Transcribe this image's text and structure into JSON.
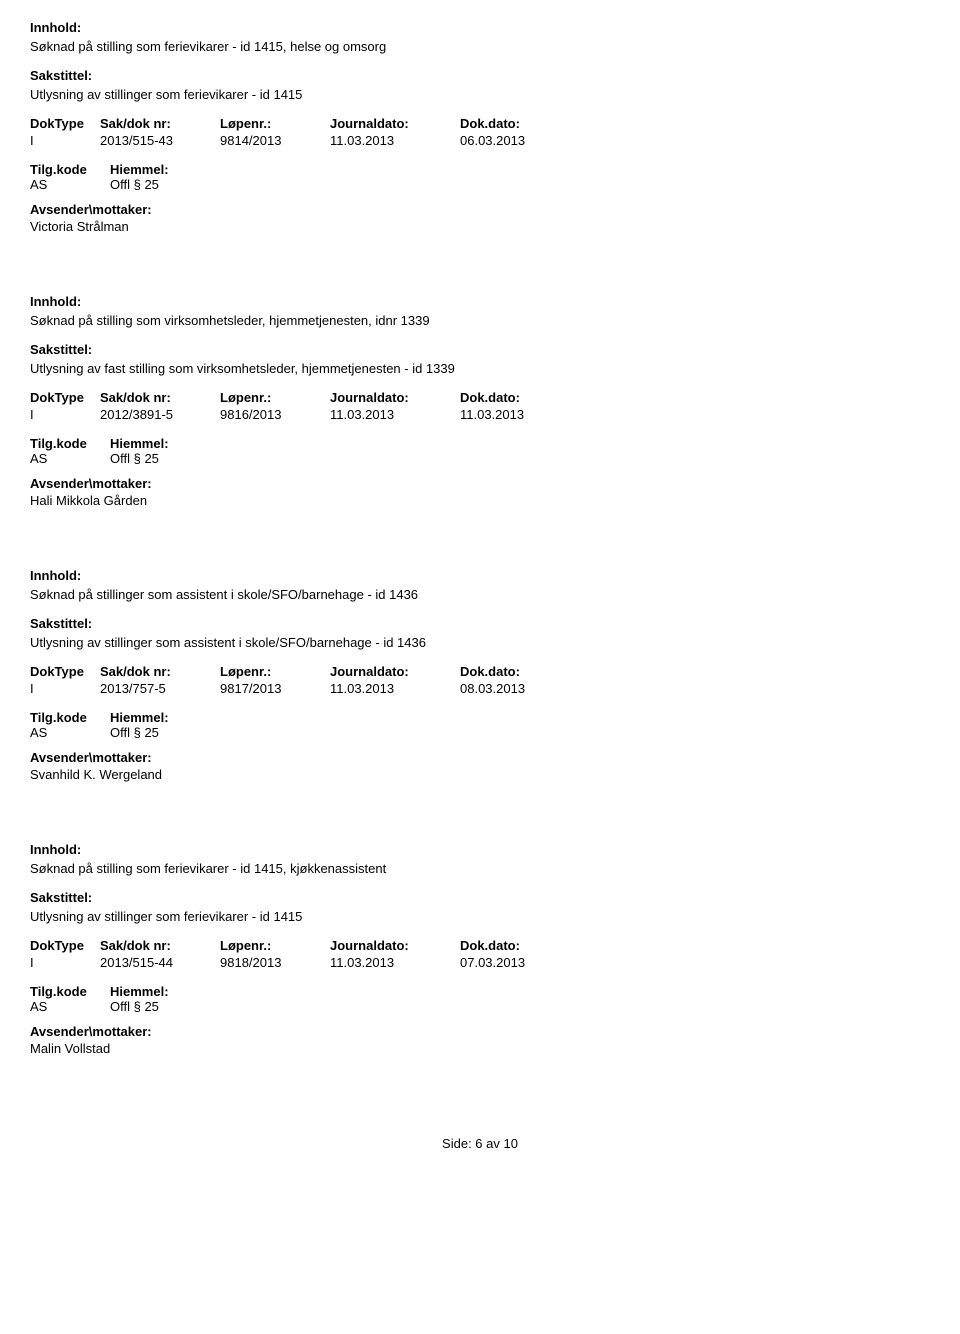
{
  "labels": {
    "innhold": "Innhold:",
    "sakstittel": "Sakstittel:",
    "doktype": "DokType",
    "saknr": "Sak/dok nr:",
    "lopenr": "Løpenr.:",
    "journaldato": "Journaldato:",
    "dokdato": "Dok.dato:",
    "tilgkode": "Tilg.kode",
    "hjemmel": "Hiemmel:",
    "avsender": "Avsender\\mottaker:"
  },
  "records": [
    {
      "innhold": "Søknad på stilling som ferievikarer - id 1415, helse og omsorg",
      "sakstittel": "Utlysning av stillinger som ferievikarer - id 1415",
      "doktype": "I",
      "saknr": "2013/515-43",
      "lopenr": "9814/2013",
      "journaldato": "11.03.2013",
      "dokdato": "06.03.2013",
      "tilgkode": "AS",
      "hjemmel": "Offl § 25",
      "avsender": "Victoria Strålman"
    },
    {
      "innhold": "Søknad på stilling som virksomhetsleder, hjemmetjenesten, idnr 1339",
      "sakstittel": "Utlysning av fast stilling som virksomhetsleder, hjemmetjenesten - id 1339",
      "doktype": "I",
      "saknr": "2012/3891-5",
      "lopenr": "9816/2013",
      "journaldato": "11.03.2013",
      "dokdato": "11.03.2013",
      "tilgkode": "AS",
      "hjemmel": "Offl § 25",
      "avsender": "Hali Mikkola Gården"
    },
    {
      "innhold": "Søknad på stillinger som assistent i skole/SFO/barnehage - id 1436",
      "sakstittel": "Utlysning av stillinger som assistent i skole/SFO/barnehage - id 1436",
      "doktype": "I",
      "saknr": "2013/757-5",
      "lopenr": "9817/2013",
      "journaldato": "11.03.2013",
      "dokdato": "08.03.2013",
      "tilgkode": "AS",
      "hjemmel": "Offl § 25",
      "avsender": "Svanhild K. Wergeland"
    },
    {
      "innhold": "Søknad på stilling som ferievikarer - id 1415, kjøkkenassistent",
      "sakstittel": "Utlysning av stillinger som ferievikarer - id 1415",
      "doktype": "I",
      "saknr": "2013/515-44",
      "lopenr": "9818/2013",
      "journaldato": "11.03.2013",
      "dokdato": "07.03.2013",
      "tilgkode": "AS",
      "hjemmel": "Offl § 25",
      "avsender": "Malin Vollstad"
    }
  ],
  "footer": {
    "text": "Side: 6 av 10"
  }
}
